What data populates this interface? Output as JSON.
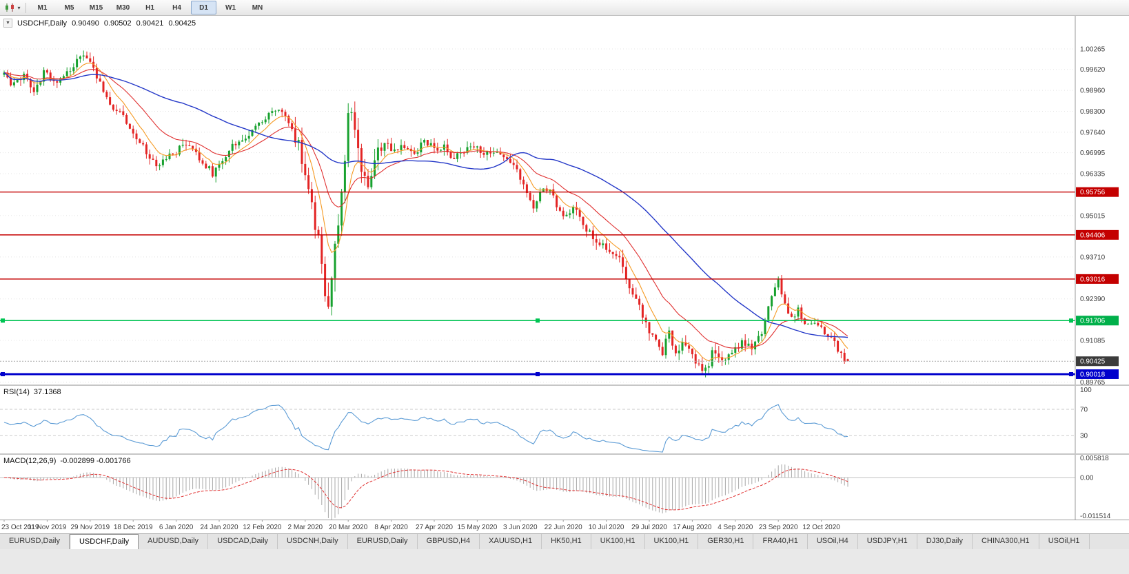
{
  "toolbar": {
    "timeframes": [
      {
        "label": "M1",
        "active": false
      },
      {
        "label": "M5",
        "active": false
      },
      {
        "label": "M15",
        "active": false
      },
      {
        "label": "M30",
        "active": false
      },
      {
        "label": "H1",
        "active": false
      },
      {
        "label": "H4",
        "active": false
      },
      {
        "label": "D1",
        "active": true
      },
      {
        "label": "W1",
        "active": false
      },
      {
        "label": "MN",
        "active": false
      }
    ]
  },
  "chart": {
    "collapse_icon": "▼",
    "symbol": "USDCHF,Daily",
    "open": "0.90490",
    "high": "0.90502",
    "low": "0.90421",
    "close": "0.90425"
  },
  "price_axis": {
    "labels": [
      {
        "text": "1.00265",
        "price": 1.00265
      },
      {
        "text": "0.99620",
        "price": 0.9962
      },
      {
        "text": "0.98960",
        "price": 0.9896
      },
      {
        "text": "0.98300",
        "price": 0.983
      },
      {
        "text": "0.97640",
        "price": 0.9764
      },
      {
        "text": "0.96995",
        "price": 0.96995
      },
      {
        "text": "0.96335",
        "price": 0.96335
      },
      {
        "text": "0.95015",
        "price": 0.95015
      },
      {
        "text": "0.93710",
        "price": 0.9371
      },
      {
        "text": "0.92390",
        "price": 0.9239
      },
      {
        "text": "0.91085",
        "price": 0.91085
      },
      {
        "text": "0.89765",
        "price": 0.89765
      }
    ],
    "badges": [
      {
        "text": "0.95756",
        "price": 0.95756,
        "color": "#c40000"
      },
      {
        "text": "0.94406",
        "price": 0.94406,
        "color": "#c40000"
      },
      {
        "text": "0.93016",
        "price": 0.93016,
        "color": "#c40000"
      },
      {
        "text": "0.91706",
        "price": 0.91706,
        "color": "#00b04a"
      },
      {
        "text": "0.90425",
        "price": 0.90425,
        "color": "#3b3b3b"
      },
      {
        "text": "0.90018",
        "price": 0.90018,
        "color": "#0000cc"
      }
    ]
  },
  "chart_data": {
    "type": "candlestick",
    "symbol": "USDCHF",
    "timeframe": "Daily",
    "candle_count": 256,
    "last_candle": {
      "open": 0.9049,
      "high": 0.90502,
      "low": 0.90421,
      "close": 0.90425
    },
    "x_ticks": [
      {
        "i": 0,
        "label": "23 Oct 2019"
      },
      {
        "i": 13,
        "label": "11 Nov 2019"
      },
      {
        "i": 26,
        "label": "29 Nov 2019"
      },
      {
        "i": 39,
        "label": "18 Dec 2019"
      },
      {
        "i": 52,
        "label": "6 Jan 2020"
      },
      {
        "i": 65,
        "label": "24 Jan 2020"
      },
      {
        "i": 78,
        "label": "12 Feb 2020"
      },
      {
        "i": 91,
        "label": "2 Mar 2020"
      },
      {
        "i": 104,
        "label": "20 Mar 2020"
      },
      {
        "i": 117,
        "label": "8 Apr 2020"
      },
      {
        "i": 130,
        "label": "27 Apr 2020"
      },
      {
        "i": 143,
        "label": "15 May 2020"
      },
      {
        "i": 156,
        "label": "3 Jun 2020"
      },
      {
        "i": 169,
        "label": "22 Jun 2020"
      },
      {
        "i": 182,
        "label": "10 Jul 2020"
      },
      {
        "i": 195,
        "label": "29 Jul 2020"
      },
      {
        "i": 208,
        "label": "17 Aug 2020"
      },
      {
        "i": 221,
        "label": "4 Sep 2020"
      },
      {
        "i": 234,
        "label": "23 Sep 2020"
      },
      {
        "i": 247,
        "label": "12 Oct 2020"
      }
    ],
    "close_path_anchors": [
      [
        0,
        0.9945
      ],
      [
        3,
        0.9912
      ],
      [
        6,
        0.9938
      ],
      [
        9,
        0.9902
      ],
      [
        12,
        0.995
      ],
      [
        15,
        0.9922
      ],
      [
        18,
        0.994
      ],
      [
        21,
        0.9972
      ],
      [
        24,
        1.0005
      ],
      [
        26,
        0.9992
      ],
      [
        28,
        0.993
      ],
      [
        31,
        0.9878
      ],
      [
        34,
        0.9828
      ],
      [
        37,
        0.98
      ],
      [
        40,
        0.9752
      ],
      [
        43,
        0.97
      ],
      [
        46,
        0.9662
      ],
      [
        49,
        0.9692
      ],
      [
        52,
        0.9705
      ],
      [
        55,
        0.9728
      ],
      [
        58,
        0.9698
      ],
      [
        61,
        0.9658
      ],
      [
        63,
        0.9635
      ],
      [
        66,
        0.968
      ],
      [
        69,
        0.9718
      ],
      [
        72,
        0.9748
      ],
      [
        75,
        0.9768
      ],
      [
        78,
        0.9798
      ],
      [
        81,
        0.9838
      ],
      [
        84,
        0.9818
      ],
      [
        87,
        0.9778
      ],
      [
        89,
        0.9718
      ],
      [
        91,
        0.964
      ],
      [
        93,
        0.9548
      ],
      [
        95,
        0.9415
      ],
      [
        97,
        0.924
      ],
      [
        98,
        0.9205
      ],
      [
        100,
        0.939
      ],
      [
        102,
        0.9555
      ],
      [
        104,
        0.9848
      ],
      [
        106,
        0.9758
      ],
      [
        108,
        0.9658
      ],
      [
        110,
        0.959
      ],
      [
        112,
        0.9688
      ],
      [
        115,
        0.9738
      ],
      [
        118,
        0.9698
      ],
      [
        121,
        0.9718
      ],
      [
        124,
        0.9688
      ],
      [
        127,
        0.9742
      ],
      [
        130,
        0.9708
      ],
      [
        133,
        0.9728
      ],
      [
        136,
        0.968
      ],
      [
        139,
        0.9708
      ],
      [
        142,
        0.9722
      ],
      [
        145,
        0.9695
      ],
      [
        148,
        0.9708
      ],
      [
        151,
        0.9698
      ],
      [
        154,
        0.9658
      ],
      [
        157,
        0.9608
      ],
      [
        160,
        0.9528
      ],
      [
        163,
        0.9598
      ],
      [
        166,
        0.9558
      ],
      [
        169,
        0.9488
      ],
      [
        172,
        0.9528
      ],
      [
        175,
        0.9468
      ],
      [
        178,
        0.9442
      ],
      [
        181,
        0.9412
      ],
      [
        184,
        0.9388
      ],
      [
        187,
        0.9342
      ],
      [
        190,
        0.9258
      ],
      [
        193,
        0.9188
      ],
      [
        196,
        0.9118
      ],
      [
        199,
        0.9068
      ],
      [
        201,
        0.9138
      ],
      [
        203,
        0.9058
      ],
      [
        206,
        0.9108
      ],
      [
        209,
        0.9038
      ],
      [
        212,
        0.9008
      ],
      [
        214,
        0.9078
      ],
      [
        217,
        0.9052
      ],
      [
        220,
        0.9072
      ],
      [
        223,
        0.9102
      ],
      [
        226,
        0.9082
      ],
      [
        229,
        0.9138
      ],
      [
        232,
        0.9238
      ],
      [
        234,
        0.9295
      ],
      [
        236,
        0.9212
      ],
      [
        238,
        0.9172
      ],
      [
        240,
        0.9202
      ],
      [
        242,
        0.9158
      ],
      [
        245,
        0.917
      ],
      [
        247,
        0.9148
      ],
      [
        250,
        0.9112
      ],
      [
        252,
        0.9082
      ],
      [
        254,
        0.9052
      ],
      [
        255,
        0.90425
      ]
    ],
    "horizontal_lines": [
      {
        "price": 0.95756,
        "color": "#c40000",
        "width": 1.4,
        "selected": false
      },
      {
        "price": 0.94406,
        "color": "#c40000",
        "width": 1.4,
        "selected": false
      },
      {
        "price": 0.93016,
        "color": "#c40000",
        "width": 1.4,
        "selected": false
      },
      {
        "price": 0.91706,
        "color": "#00c453",
        "width": 1.6,
        "selected": true
      },
      {
        "price": 0.90018,
        "color": "#0000cc",
        "width": 3,
        "selected": true
      }
    ],
    "moving_averages": [
      {
        "type": "ema",
        "period": 8,
        "color": "#f59a23"
      },
      {
        "type": "ema",
        "period": 21,
        "color": "#e03030"
      },
      {
        "type": "sma",
        "period": 55,
        "color": "#2438c8"
      }
    ],
    "indicators": {
      "rsi": {
        "name": "RSI",
        "period": 14,
        "current": 37.1368,
        "levels": [
          70,
          30
        ],
        "axis_labels": [
          {
            "text": "100",
            "v": 100
          },
          {
            "text": "70",
            "v": 70
          },
          {
            "text": "30",
            "v": 30
          }
        ]
      },
      "macd": {
        "name": "MACD",
        "fast": 12,
        "slow": 26,
        "signal": 9,
        "current": -0.002899,
        "signal_current": -0.001766,
        "axis_labels": [
          {
            "text": "0.005818",
            "v": 0.005818
          },
          {
            "text": "0.00",
            "v": 0
          },
          {
            "text": "-0.011514",
            "v": -0.011514
          }
        ]
      }
    }
  },
  "rsi_panel": {
    "title": "RSI(14)",
    "value": "37.1368"
  },
  "macd_panel": {
    "title": "MACD(12,26,9)",
    "value": "-0.002899 -0.001766"
  },
  "tabs": [
    {
      "label": "EURUSD,Daily",
      "active": false
    },
    {
      "label": "USDCHF,Daily",
      "active": true
    },
    {
      "label": "AUDUSD,Daily",
      "active": false
    },
    {
      "label": "USDCAD,Daily",
      "active": false
    },
    {
      "label": "USDCNH,Daily",
      "active": false
    },
    {
      "label": "EURUSD,Daily",
      "active": false
    },
    {
      "label": "GBPUSD,H4",
      "active": false
    },
    {
      "label": "XAUUSD,H1",
      "active": false
    },
    {
      "label": "HK50,H1",
      "active": false
    },
    {
      "label": "UK100,H1",
      "active": false
    },
    {
      "label": "UK100,H1",
      "active": false
    },
    {
      "label": "GER30,H1",
      "active": false
    },
    {
      "label": "FRA40,H1",
      "active": false
    },
    {
      "label": "USOil,H4",
      "active": false
    },
    {
      "label": "USDJPY,H1",
      "active": false
    },
    {
      "label": "DJ30,Daily",
      "active": false
    },
    {
      "label": "CHINA300,H1",
      "active": false
    },
    {
      "label": "USOil,H1",
      "active": false
    }
  ],
  "colors": {
    "up": "#17a12e",
    "down": "#e32424",
    "rsi_line": "#5b9bd5",
    "macd_hist": "#a8a8a8",
    "macd_signal": "#e03030",
    "grid": "#e3e3e3",
    "axis_text": "#3c3c3c",
    "current_price_line": "#aaaaaa"
  }
}
